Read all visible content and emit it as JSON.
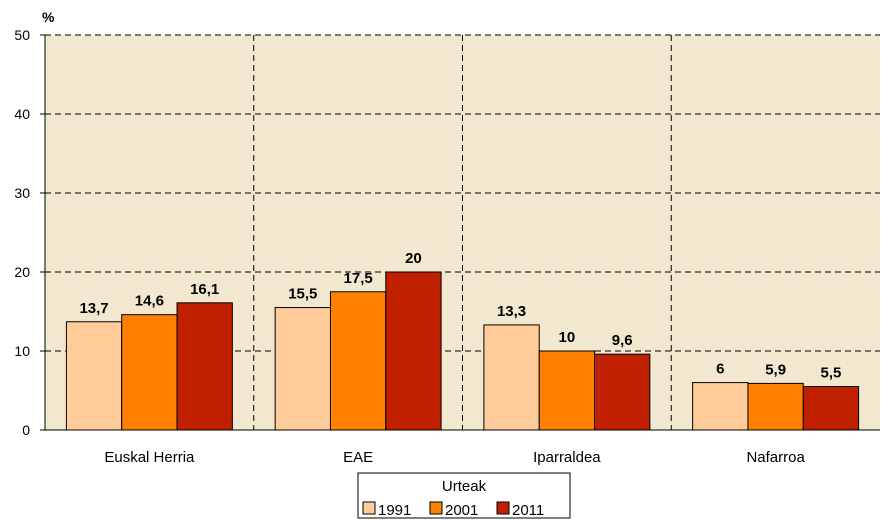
{
  "chart_data": {
    "type": "bar",
    "ylabel": "%",
    "ylim": [
      0,
      50
    ],
    "yticks": [
      0,
      10,
      20,
      30,
      40,
      50
    ],
    "grid": true,
    "categories": [
      "Euskal Herria",
      "EAE",
      "Iparraldea",
      "Nafarroa"
    ],
    "series": [
      {
        "name": "1991",
        "color": "#FFCC99",
        "values": [
          13.7,
          15.5,
          13.3,
          6
        ],
        "labels": [
          "13,7",
          "15,5",
          "13,3",
          "6"
        ]
      },
      {
        "name": "2001",
        "color": "#FF8000",
        "values": [
          14.6,
          17.5,
          10,
          5.9
        ],
        "labels": [
          "14,6",
          "17,5",
          "10",
          "5,9"
        ]
      },
      {
        "name": "2011",
        "color": "#C02000",
        "values": [
          16.1,
          20,
          9.6,
          5.5
        ],
        "labels": [
          "16,1",
          "20",
          "9,6",
          "5,5"
        ]
      }
    ],
    "legend": {
      "title": "Urteak",
      "position": "bottom-center"
    },
    "plot_background": "#F2E8D0"
  }
}
